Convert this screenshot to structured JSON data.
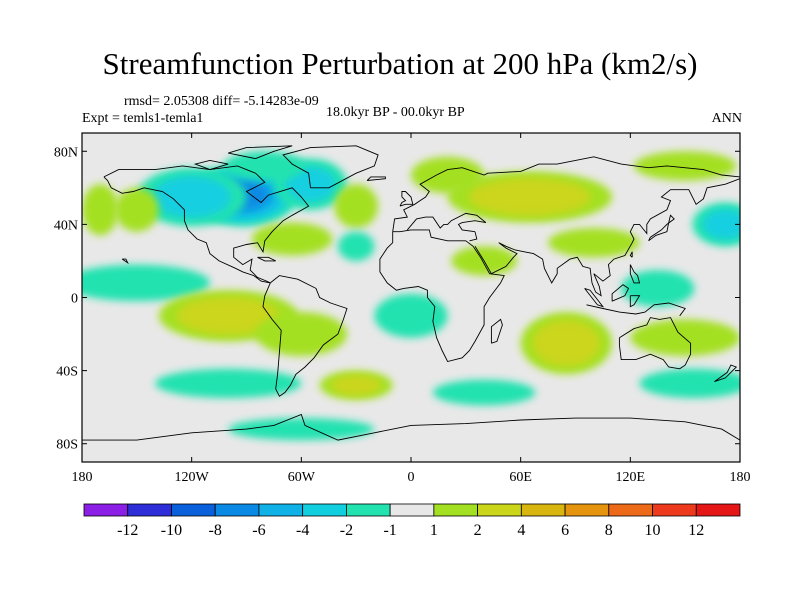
{
  "chart_data": {
    "type": "heatmap",
    "title": "Streamfunction Perturbation at 200 hPa (km2/s)",
    "stats": "rmsd= 2.05308 diff= -5.14283e-09",
    "experiment": "Expt = temls1-temla1",
    "period": "18.0kyr BP - 00.0kyr BP",
    "season": "ANN",
    "x_range": [
      -180,
      180
    ],
    "y_range": [
      -90,
      90
    ],
    "x_ticks": [
      {
        "value": -180,
        "label": "180"
      },
      {
        "value": -120,
        "label": "120W"
      },
      {
        "value": -60,
        "label": "60W"
      },
      {
        "value": 0,
        "label": "0"
      },
      {
        "value": 60,
        "label": "60E"
      },
      {
        "value": 120,
        "label": "120E"
      },
      {
        "value": 180,
        "label": "180"
      }
    ],
    "y_ticks": [
      {
        "value": 80,
        "label": "80N"
      },
      {
        "value": 40,
        "label": "40N"
      },
      {
        "value": 0,
        "label": "0"
      },
      {
        "value": -40,
        "label": "40S"
      },
      {
        "value": -80,
        "label": "80S"
      }
    ],
    "colorbar": {
      "colors": [
        "#8b1fe6",
        "#2d2ed8",
        "#0a5fdb",
        "#0a8ae4",
        "#10b1e6",
        "#12cfe0",
        "#22e2b0",
        "#e8e8e8",
        "#a4e022",
        "#cbd61a",
        "#d9b60f",
        "#e59410",
        "#ed6a18",
        "#ee3a1c",
        "#e41616"
      ],
      "labels": [
        "-12",
        "-10",
        "-8",
        "-6",
        "-4",
        "-2",
        "-1",
        "1",
        "2",
        "4",
        "6",
        "8",
        "10",
        "12"
      ]
    },
    "anomalies": [
      {
        "lon": -92,
        "lat": 56,
        "value": -8.5,
        "rx": 30,
        "ry": 17
      },
      {
        "lon": -120,
        "lat": 55,
        "value": -3.5,
        "rx": 30,
        "ry": 16
      },
      {
        "lon": -55,
        "lat": 62,
        "value": -3,
        "rx": 20,
        "ry": 14
      },
      {
        "lon": -150,
        "lat": 48,
        "value": 2,
        "rx": 12,
        "ry": 12
      },
      {
        "lon": -170,
        "lat": 48,
        "value": 2,
        "rx": 10,
        "ry": 14
      },
      {
        "lon": -65,
        "lat": 32,
        "value": 2.5,
        "rx": 22,
        "ry": 9
      },
      {
        "lon": -80,
        "lat": 72,
        "value": -2,
        "rx": 22,
        "ry": 8
      },
      {
        "lon": -30,
        "lat": 50,
        "value": 2,
        "rx": 12,
        "ry": 12
      },
      {
        "lon": 20,
        "lat": 67,
        "value": 2,
        "rx": 20,
        "ry": 10
      },
      {
        "lon": 65,
        "lat": 55,
        "value": 4,
        "rx": 45,
        "ry": 14
      },
      {
        "lon": 150,
        "lat": 72,
        "value": 2,
        "rx": 28,
        "ry": 8
      },
      {
        "lon": 172,
        "lat": 40,
        "value": -3,
        "rx": 18,
        "ry": 12
      },
      {
        "lon": -30,
        "lat": 28,
        "value": -2,
        "rx": 10,
        "ry": 8
      },
      {
        "lon": 40,
        "lat": 20,
        "value": 2,
        "rx": 18,
        "ry": 8
      },
      {
        "lon": 100,
        "lat": 30,
        "value": 2,
        "rx": 25,
        "ry": 8
      },
      {
        "lon": 135,
        "lat": 5,
        "value": -2,
        "rx": 20,
        "ry": 10
      },
      {
        "lon": -150,
        "lat": 8,
        "value": -2,
        "rx": 40,
        "ry": 10
      },
      {
        "lon": -100,
        "lat": -10,
        "value": 4,
        "rx": 38,
        "ry": 14
      },
      {
        "lon": -60,
        "lat": -20,
        "value": 2.5,
        "rx": 25,
        "ry": 12
      },
      {
        "lon": 0,
        "lat": -10,
        "value": -2,
        "rx": 20,
        "ry": 12
      },
      {
        "lon": 85,
        "lat": -25,
        "value": 4,
        "rx": 25,
        "ry": 17
      },
      {
        "lon": 150,
        "lat": -22,
        "value": 2,
        "rx": 30,
        "ry": 10
      },
      {
        "lon": 155,
        "lat": -47,
        "value": -2.5,
        "rx": 30,
        "ry": 8
      },
      {
        "lon": -100,
        "lat": -47,
        "value": -2.5,
        "rx": 40,
        "ry": 8
      },
      {
        "lon": -30,
        "lat": -48,
        "value": 3,
        "rx": 20,
        "ry": 8
      },
      {
        "lon": 40,
        "lat": -52,
        "value": -2,
        "rx": 28,
        "ry": 7
      },
      {
        "lon": -60,
        "lat": -72,
        "value": -1.5,
        "rx": 40,
        "ry": 6
      }
    ]
  }
}
